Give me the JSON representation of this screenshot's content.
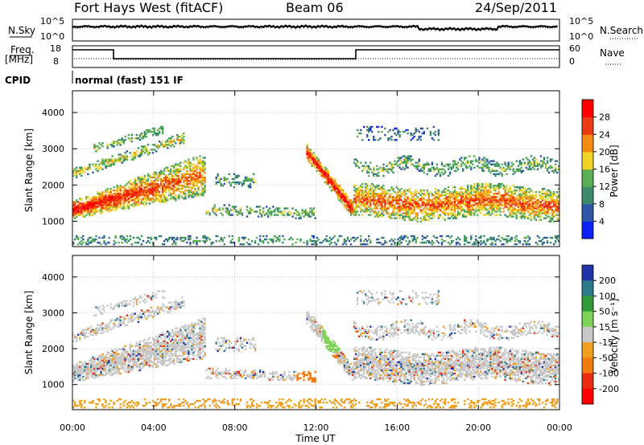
{
  "header": {
    "title": "Fort Hays West (fitACF)",
    "beam": "Beam 06",
    "date": "24/Sep/2011"
  },
  "status_panel": {
    "n_sky_label": "N.Sky",
    "n_search_label": "N.Search",
    "left_ticks": [
      "10^5",
      "10^0"
    ],
    "right_ticks": [
      "10^5",
      "10^0"
    ]
  },
  "freq_panel": {
    "freq_label": "Freq.",
    "freq_unit": "[MHz]",
    "left_ticks": [
      "18",
      "8"
    ],
    "nave_label": "Nave",
    "right_ticks": [
      "60",
      "0"
    ],
    "cpid_label": "CPID",
    "cpid_text": "normal (fast) 151 IF"
  },
  "chart_data": [
    {
      "type": "heatmap",
      "panel": "power",
      "ylabel": "Slant Range [km]",
      "xlabel": "",
      "yticks": [
        "1000",
        "2000",
        "3000",
        "4000"
      ],
      "ylim": [
        300,
        4600
      ],
      "xlim": [
        0,
        24
      ],
      "colorbar": {
        "label": "Power [dB]",
        "ticks": [
          "4",
          "8",
          "12",
          "16",
          "20",
          "24",
          "28"
        ],
        "colors": [
          "#0b22f5",
          "#2f55a8",
          "#3b8b6c",
          "#5aaf55",
          "#f0d327",
          "#f48a13",
          "#ea3b14",
          "#ff0000"
        ]
      },
      "grid": true
    },
    {
      "type": "heatmap",
      "panel": "velocity",
      "ylabel": "Slant Range [km]",
      "xlabel": "Time UT",
      "yticks": [
        "1000",
        "2000",
        "3000",
        "4000"
      ],
      "xticks": [
        "00:00",
        "04:00",
        "08:00",
        "12:00",
        "16:00",
        "20:00",
        "00:00"
      ],
      "ylim": [
        300,
        4600
      ],
      "xlim": [
        0,
        24
      ],
      "colorbar": {
        "label": "Velocity [m s⁻¹]",
        "ticks": [
          "200",
          "100",
          "50",
          "15",
          "-15",
          "-50",
          "-100",
          "-200"
        ],
        "colors": [
          "#2033a8",
          "#2a7c8c",
          "#2f9b3a",
          "#7ed357",
          "#c8c8c8",
          "#f0a020",
          "#f27b10",
          "#ea2d10",
          "#ff0000"
        ]
      },
      "grid": true
    }
  ]
}
